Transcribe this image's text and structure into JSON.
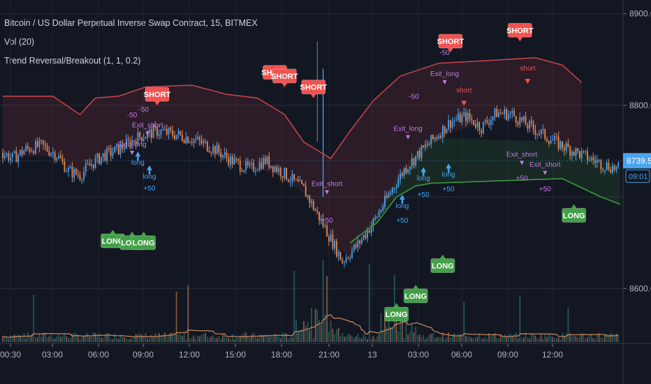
{
  "legend": {
    "title": "Bitcoin / US Dollar Perpetual Inverse Swap Contract, 15, BITMEX",
    "vol": "Vol (20)",
    "indicator": "Trend Reversal/Breakout (1, 1, 0.2)"
  },
  "price_tag": {
    "value": "8739.5",
    "countdown": "09:01",
    "color": "#4aa3f0"
  },
  "colors": {
    "background": "#131722",
    "up": "#4aa3f0",
    "down": "#e08a52",
    "upper_band": "#c0434a",
    "lower_band": "#3a9a3a",
    "short_signal": "#ef5350",
    "long_signal": "#43a047",
    "exit_label": "#c07ce0",
    "long_label": "#42a5f5",
    "short_label": "#ef5350",
    "vol_ma": "#c0835a"
  },
  "chart_data": {
    "type": "candlestick",
    "y_axis": {
      "ticks": [
        "8900.0",
        "8800.0",
        "8600.0"
      ],
      "range": [
        8540,
        8915
      ]
    },
    "x_axis": {
      "ticks": [
        "00:30",
        "03:00",
        "06:00",
        "09:00",
        "12:00",
        "15:00",
        "18:00",
        "21:00",
        "13",
        "03:00",
        "06:00",
        "09:00",
        "12:00"
      ]
    },
    "close_series": [
      {
        "t": 0,
        "p": 8748
      },
      {
        "t": 5,
        "p": 8742
      },
      {
        "t": 12,
        "p": 8752
      },
      {
        "t": 20,
        "p": 8756
      },
      {
        "t": 28,
        "p": 8746
      },
      {
        "t": 34,
        "p": 8728
      },
      {
        "t": 40,
        "p": 8724
      },
      {
        "t": 46,
        "p": 8736
      },
      {
        "t": 52,
        "p": 8745
      },
      {
        "t": 60,
        "p": 8752
      },
      {
        "t": 70,
        "p": 8765
      },
      {
        "t": 80,
        "p": 8772
      },
      {
        "t": 90,
        "p": 8768
      },
      {
        "t": 100,
        "p": 8762
      },
      {
        "t": 110,
        "p": 8752
      },
      {
        "t": 118,
        "p": 8740
      },
      {
        "t": 128,
        "p": 8730
      },
      {
        "t": 136,
        "p": 8740
      },
      {
        "t": 146,
        "p": 8725
      },
      {
        "t": 156,
        "p": 8708
      },
      {
        "t": 166,
        "p": 8670
      },
      {
        "t": 176,
        "p": 8630
      },
      {
        "t": 184,
        "p": 8648
      },
      {
        "t": 192,
        "p": 8672
      },
      {
        "t": 200,
        "p": 8702
      },
      {
        "t": 208,
        "p": 8730
      },
      {
        "t": 216,
        "p": 8748
      },
      {
        "t": 224,
        "p": 8765
      },
      {
        "t": 232,
        "p": 8782
      },
      {
        "t": 240,
        "p": 8788
      },
      {
        "t": 248,
        "p": 8776
      },
      {
        "t": 256,
        "p": 8792
      },
      {
        "t": 264,
        "p": 8790
      },
      {
        "t": 272,
        "p": 8778
      },
      {
        "t": 280,
        "p": 8768
      },
      {
        "t": 288,
        "p": 8758
      },
      {
        "t": 296,
        "p": 8750
      },
      {
        "t": 304,
        "p": 8742
      },
      {
        "t": 312,
        "p": 8735
      },
      {
        "t": 320,
        "p": 8730
      }
    ],
    "bands": {
      "upper": [
        {
          "t": 0,
          "p": 8810
        },
        {
          "t": 26,
          "p": 8810
        },
        {
          "t": 40,
          "p": 8790
        },
        {
          "t": 48,
          "p": 8808
        },
        {
          "t": 60,
          "p": 8810
        },
        {
          "t": 74,
          "p": 8820
        },
        {
          "t": 98,
          "p": 8822
        },
        {
          "t": 116,
          "p": 8812
        },
        {
          "t": 132,
          "p": 8808
        },
        {
          "t": 146,
          "p": 8790
        },
        {
          "t": 156,
          "p": 8760
        },
        {
          "t": 170,
          "p": 8742
        },
        {
          "t": 180,
          "p": 8772
        },
        {
          "t": 192,
          "p": 8805
        },
        {
          "t": 206,
          "p": 8832
        },
        {
          "t": 226,
          "p": 8846
        },
        {
          "t": 244,
          "p": 8848
        },
        {
          "t": 260,
          "p": 8850
        },
        {
          "t": 276,
          "p": 8852
        },
        {
          "t": 290,
          "p": 8844
        },
        {
          "t": 300,
          "p": 8825
        }
      ],
      "lower": [
        {
          "t": 180,
          "p": 8650
        },
        {
          "t": 194,
          "p": 8672
        },
        {
          "t": 204,
          "p": 8700
        },
        {
          "t": 214,
          "p": 8712
        },
        {
          "t": 222,
          "p": 8715
        },
        {
          "t": 290,
          "p": 8720
        },
        {
          "t": 300,
          "p": 8710
        },
        {
          "t": 310,
          "p": 8700
        },
        {
          "t": 320,
          "p": 8692
        }
      ]
    },
    "volume_ma_note": "moving average of volume",
    "signals": [
      {
        "type": "short",
        "label": "SHORT",
        "t": 80,
        "p": 8812
      },
      {
        "type": "short",
        "label": "SHORT",
        "t": 141,
        "p": 8836
      },
      {
        "type": "short",
        "label": "SHORT",
        "t": 146,
        "p": 8832
      },
      {
        "type": "short",
        "label": "SHORT",
        "t": 161,
        "p": 8820
      },
      {
        "type": "short",
        "label": "SHORT",
        "t": 232,
        "p": 8870
      },
      {
        "type": "short",
        "label": "SHORT",
        "t": 268,
        "p": 8882
      },
      {
        "type": "long",
        "label": "LONG",
        "t": 57,
        "p": 8652
      },
      {
        "type": "long",
        "label": "LONG",
        "t": 67,
        "p": 8650
      },
      {
        "type": "long",
        "label": "LONG",
        "t": 73,
        "p": 8650
      },
      {
        "type": "long",
        "label": "LONG",
        "t": 204,
        "p": 8572
      },
      {
        "type": "long",
        "label": "LONG",
        "t": 214,
        "p": 8592
      },
      {
        "type": "long",
        "label": "LONG",
        "t": 228,
        "p": 8625
      },
      {
        "type": "long",
        "label": "LONG",
        "t": 296,
        "p": 8680
      }
    ],
    "annotations": [
      {
        "text": "-50",
        "t": 73,
        "p": 8793,
        "kind": "exit"
      },
      {
        "text": "-50",
        "t": 67,
        "p": 8787,
        "kind": "exit"
      },
      {
        "text": "Exit_short",
        "t": 75,
        "p": 8776,
        "kind": "exit"
      },
      {
        "text": "Exit_long",
        "t": 67,
        "p": 8755,
        "kind": "exit"
      },
      {
        "text": "long",
        "t": 70,
        "p": 8735,
        "kind": "long"
      },
      {
        "text": "long",
        "t": 76,
        "p": 8720,
        "kind": "long"
      },
      {
        "text": "+50",
        "t": 76,
        "p": 8707,
        "kind": "long"
      },
      {
        "text": "Exit_short",
        "t": 168,
        "p": 8712,
        "kind": "exit"
      },
      {
        "text": "+50",
        "t": 168,
        "p": 8672,
        "kind": "exit"
      },
      {
        "text": "-50",
        "t": 229,
        "p": 8855,
        "kind": "exit"
      },
      {
        "text": "Exit_long",
        "t": 229,
        "p": 8832,
        "kind": "exit"
      },
      {
        "text": "short",
        "t": 239,
        "p": 8814,
        "kind": "short"
      },
      {
        "text": "-50",
        "t": 213,
        "p": 8807,
        "kind": "exit"
      },
      {
        "text": "Exit_long",
        "t": 210,
        "p": 8772,
        "kind": "exit"
      },
      {
        "text": "long",
        "t": 231,
        "p": 8722,
        "kind": "long"
      },
      {
        "text": "+50",
        "t": 231,
        "p": 8706,
        "kind": "long"
      },
      {
        "text": "long",
        "t": 218,
        "p": 8718,
        "kind": "long"
      },
      {
        "text": "+50",
        "t": 218,
        "p": 8700,
        "kind": "long"
      },
      {
        "text": "long",
        "t": 207,
        "p": 8688,
        "kind": "long"
      },
      {
        "text": "+50",
        "t": 207,
        "p": 8672,
        "kind": "long"
      },
      {
        "text": "short",
        "t": 272,
        "p": 8838,
        "kind": "short"
      },
      {
        "text": "Exit_short",
        "t": 269,
        "p": 8744,
        "kind": "exit"
      },
      {
        "text": "Exit_short",
        "t": 281,
        "p": 8733,
        "kind": "exit"
      },
      {
        "text": "+50",
        "t": 269,
        "p": 8718,
        "kind": "exit"
      },
      {
        "text": "+50",
        "t": 281,
        "p": 8706,
        "kind": "exit"
      }
    ]
  }
}
